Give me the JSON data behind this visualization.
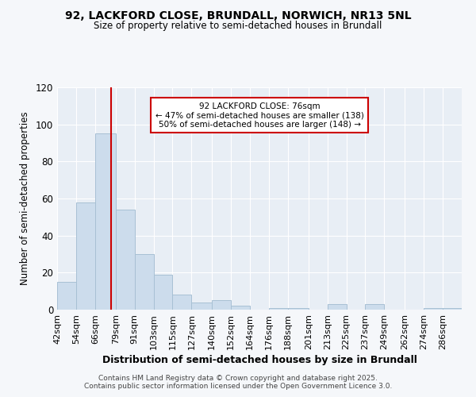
{
  "title1": "92, LACKFORD CLOSE, BRUNDALL, NORWICH, NR13 5NL",
  "title2": "Size of property relative to semi-detached houses in Brundall",
  "xlabel": "Distribution of semi-detached houses by size in Brundall",
  "ylabel": "Number of semi-detached properties",
  "bin_labels": [
    "42sqm",
    "54sqm",
    "66sqm",
    "79sqm",
    "91sqm",
    "103sqm",
    "115sqm",
    "127sqm",
    "140sqm",
    "152sqm",
    "164sqm",
    "176sqm",
    "188sqm",
    "201sqm",
    "213sqm",
    "225sqm",
    "237sqm",
    "249sqm",
    "262sqm",
    "274sqm",
    "286sqm"
  ],
  "bin_edges": [
    42,
    54,
    66,
    79,
    91,
    103,
    115,
    127,
    140,
    152,
    164,
    176,
    188,
    201,
    213,
    225,
    237,
    249,
    262,
    274,
    286,
    298
  ],
  "bar_heights": [
    15,
    58,
    95,
    54,
    30,
    19,
    8,
    4,
    5,
    2,
    0,
    1,
    1,
    0,
    3,
    0,
    3,
    0,
    0,
    1,
    1
  ],
  "bar_color": "#ccdcec",
  "bar_edge_color": "#a8c0d4",
  "vline_x": 76,
  "vline_color": "#cc0000",
  "annotation_title": "92 LACKFORD CLOSE: 76sqm",
  "annotation_line1": "← 47% of semi-detached houses are smaller (138)",
  "annotation_line2": "50% of semi-detached houses are larger (148) →",
  "annotation_box_edge_color": "#cc0000",
  "ylim": [
    0,
    120
  ],
  "yticks": [
    0,
    20,
    40,
    60,
    80,
    100,
    120
  ],
  "background_color": "#e8eef5",
  "figure_bg": "#f5f7fa",
  "grid_color": "#ffffff",
  "footer_line1": "Contains HM Land Registry data © Crown copyright and database right 2025.",
  "footer_line2": "Contains public sector information licensed under the Open Government Licence 3.0."
}
